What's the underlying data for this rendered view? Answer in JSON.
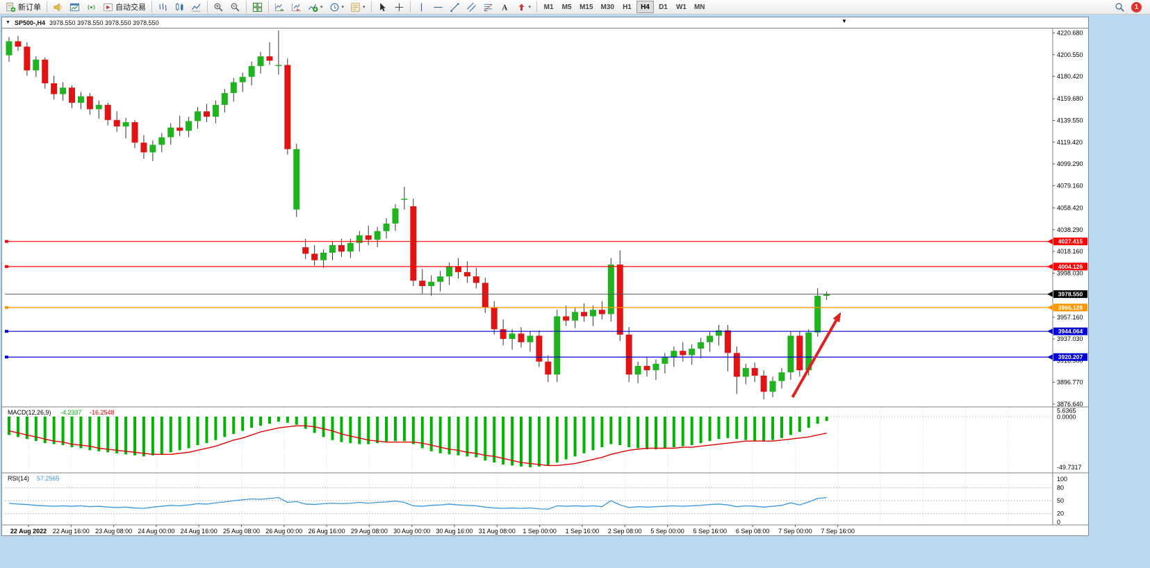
{
  "toolbar": {
    "items": [
      {
        "type": "button",
        "name": "new-order-button",
        "icon": "new-order-icon",
        "label": "新订单"
      },
      {
        "type": "sep"
      },
      {
        "type": "icon",
        "name": "announcement-button",
        "icon": "announcement-icon"
      },
      {
        "type": "icon",
        "name": "chart-window-button",
        "icon": "chart-window-icon"
      },
      {
        "type": "icon",
        "name": "signals-button",
        "icon": "signals-icon"
      },
      {
        "type": "button",
        "name": "autotrading-button",
        "icon": "autotrading-icon",
        "label": "自动交易"
      },
      {
        "type": "sep"
      },
      {
        "type": "icon",
        "name": "bar-chart-button",
        "icon": "bar-chart-icon"
      },
      {
        "type": "icon",
        "name": "candlestick-button",
        "icon": "candles-icon"
      },
      {
        "type": "icon",
        "name": "line-chart-button",
        "icon": "line-chart-icon"
      },
      {
        "type": "sep"
      },
      {
        "type": "icon",
        "name": "zoom-in-button",
        "icon": "zoom-in-icon"
      },
      {
        "type": "icon",
        "name": "zoom-out-button",
        "icon": "zoom-out-icon"
      },
      {
        "type": "sep"
      },
      {
        "type": "icon",
        "name": "tile-windows-button",
        "icon": "tile-windows-icon"
      },
      {
        "type": "sep"
      },
      {
        "type": "icon",
        "name": "auto-scroll-button",
        "icon": "autoscroll-icon"
      },
      {
        "type": "icon",
        "name": "chart-shift-button",
        "icon": "shift-chart-icon"
      },
      {
        "type": "icon",
        "name": "indicators-button",
        "icon": "indicators-icon",
        "dropdown": true
      },
      {
        "type": "icon",
        "name": "periods-button",
        "icon": "periods-icon",
        "dropdown": true
      },
      {
        "type": "icon",
        "name": "templates-button",
        "icon": "templates-icon",
        "dropdown": true
      },
      {
        "type": "sep"
      },
      {
        "type": "icon",
        "name": "cursor-button",
        "icon": "cursor-icon"
      },
      {
        "type": "icon",
        "name": "crosshair-button",
        "icon": "crosshair-icon"
      },
      {
        "type": "sep"
      },
      {
        "type": "icon",
        "name": "vline-button",
        "icon": "vline-icon"
      },
      {
        "type": "icon",
        "name": "hline-button",
        "icon": "hline-icon"
      },
      {
        "type": "icon",
        "name": "trendline-button",
        "icon": "trendline-icon"
      },
      {
        "type": "icon",
        "name": "channel-button",
        "icon": "channel-icon"
      },
      {
        "type": "icon",
        "name": "fibonacci-button",
        "icon": "fibo-icon"
      },
      {
        "type": "icon",
        "name": "text-button",
        "icon": "text-icon"
      },
      {
        "type": "icon",
        "name": "arrows-button",
        "icon": "arrows-icon",
        "dropdown": true
      },
      {
        "type": "sep"
      },
      {
        "type": "tf",
        "label": "M1"
      },
      {
        "type": "tf",
        "label": "M5"
      },
      {
        "type": "tf",
        "label": "M15"
      },
      {
        "type": "tf",
        "label": "M30"
      },
      {
        "type": "tf",
        "label": "H1"
      },
      {
        "type": "tf",
        "label": "H4",
        "active": true
      },
      {
        "type": "tf",
        "label": "D1"
      },
      {
        "type": "tf",
        "label": "W1"
      },
      {
        "type": "tf",
        "label": "MN"
      },
      {
        "type": "spacer"
      },
      {
        "type": "icon",
        "name": "search-button",
        "icon": "search-icon"
      },
      {
        "type": "badge",
        "name": "notification-badge",
        "label": "1"
      }
    ]
  },
  "chart_window": {
    "expand_icon": "▼",
    "menu_icon": "▼",
    "title": "SP500-,H4",
    "quotes": "3978.550 3978.550 3978.550 3978.550"
  },
  "chart_data": {
    "type": "candlestick",
    "symbol": "SP500-",
    "timeframe": "H4",
    "colors": {
      "up": "#1fb41f",
      "down": "#e01414",
      "wick": "#333333"
    },
    "y_ticks": [
      "4220.680",
      "4200.550",
      "4180.420",
      "4159.680",
      "4139.550",
      "4119.420",
      "4099.290",
      "4079.160",
      "4058.420",
      "4038.290",
      "4018.160",
      "3998.030",
      "3957.160",
      "3937.030",
      "3916.900",
      "3896.770",
      "3876.640"
    ],
    "hlines": [
      {
        "price": 4027.415,
        "label": "4027.415",
        "color": "#ff0000"
      },
      {
        "price": 4004.126,
        "label": "4004.126",
        "color": "#ff0000"
      },
      {
        "price": 3966.128,
        "label": "3966.128",
        "color": "#ff9800"
      },
      {
        "price": 3944.064,
        "label": "3944.064",
        "color": "#0000d8"
      },
      {
        "price": 3920.207,
        "label": "3920.207",
        "color": "#0000d8"
      }
    ],
    "current_price": {
      "price": 3978.55,
      "label": "3978.550",
      "line_color": "#555555",
      "label_bg": "#000000"
    },
    "candles": [
      [
        4200,
        4217,
        4194,
        4213
      ],
      [
        4213,
        4218,
        4204,
        4208
      ],
      [
        4208,
        4212,
        4181,
        4186
      ],
      [
        4186,
        4199,
        4180,
        4196
      ],
      [
        4196,
        4198,
        4169,
        4174
      ],
      [
        4174,
        4181,
        4159,
        4164
      ],
      [
        4164,
        4175,
        4158,
        4170
      ],
      [
        4170,
        4172,
        4151,
        4156
      ],
      [
        4156,
        4166,
        4150,
        4162
      ],
      [
        4162,
        4165,
        4145,
        4150
      ],
      [
        4150,
        4158,
        4141,
        4154
      ],
      [
        4154,
        4156,
        4135,
        4140
      ],
      [
        4140,
        4148,
        4129,
        4134
      ],
      [
        4134,
        4142,
        4123,
        4138
      ],
      [
        4138,
        4140,
        4114,
        4119
      ],
      [
        4119,
        4126,
        4104,
        4110
      ],
      [
        4110,
        4121,
        4102,
        4117
      ],
      [
        4117,
        4128,
        4110,
        4124
      ],
      [
        4124,
        4137,
        4117,
        4133
      ],
      [
        4133,
        4144,
        4125,
        4130
      ],
      [
        4130,
        4143,
        4124,
        4139
      ],
      [
        4139,
        4152,
        4132,
        4148
      ],
      [
        4148,
        4155,
        4138,
        4143
      ],
      [
        4143,
        4158,
        4137,
        4154
      ],
      [
        4154,
        4169,
        4147,
        4165
      ],
      [
        4165,
        4179,
        4157,
        4175
      ],
      [
        4175,
        4184,
        4166,
        4180
      ],
      [
        4180,
        4194,
        4172,
        4190
      ],
      [
        4190,
        4203,
        4183,
        4199
      ],
      [
        4199,
        4212,
        4191,
        4195
      ],
      [
        4190,
        4223,
        4182,
        4191
      ],
      [
        4191,
        4197,
        4108,
        4113
      ],
      [
        4057,
        4118,
        4050,
        4113
      ],
      [
        4022,
        4030,
        4011,
        4016
      ],
      [
        4016,
        4024,
        4005,
        4010
      ],
      [
        4010,
        4020,
        4003,
        4017
      ],
      [
        4017,
        4028,
        4010,
        4024
      ],
      [
        4024,
        4030,
        4013,
        4018
      ],
      [
        4018,
        4030,
        4012,
        4026
      ],
      [
        4026,
        4037,
        4018,
        4033
      ],
      [
        4033,
        4042,
        4024,
        4029
      ],
      [
        4029,
        4041,
        4022,
        4037
      ],
      [
        4037,
        4049,
        4030,
        4044
      ],
      [
        4044,
        4062,
        4037,
        4058
      ],
      [
        4066,
        4078,
        4057,
        4067
      ],
      [
        4060,
        4067,
        3986,
        3991
      ],
      [
        3991,
        4002,
        3979,
        3986
      ],
      [
        3986,
        3996,
        3977,
        3990
      ],
      [
        3990,
        4000,
        3981,
        3995
      ],
      [
        3995,
        4008,
        3987,
        4004
      ],
      [
        4004,
        4012,
        3993,
        3999
      ],
      [
        3999,
        4009,
        3989,
        3995
      ],
      [
        3995,
        4003,
        3984,
        3989
      ],
      [
        3989,
        3994,
        3961,
        3966
      ],
      [
        3966,
        3972,
        3941,
        3946
      ],
      [
        3946,
        3955,
        3931,
        3937
      ],
      [
        3937,
        3946,
        3927,
        3942
      ],
      [
        3942,
        3948,
        3929,
        3934
      ],
      [
        3934,
        3944,
        3925,
        3940
      ],
      [
        3940,
        3945,
        3911,
        3916
      ],
      [
        3916,
        3922,
        3897,
        3904
      ],
      [
        3904,
        3964,
        3897,
        3958
      ],
      [
        3958,
        3968,
        3949,
        3954
      ],
      [
        3954,
        3966,
        3947,
        3962
      ],
      [
        3962,
        3970,
        3953,
        3958
      ],
      [
        3958,
        3968,
        3949,
        3964
      ],
      [
        3964,
        3972,
        3955,
        3960
      ],
      [
        3960,
        4012,
        3953,
        4006
      ],
      [
        4006,
        4019,
        3935,
        3941
      ],
      [
        3941,
        3948,
        3897,
        3904
      ],
      [
        3904,
        3916,
        3896,
        3912
      ],
      [
        3912,
        3920,
        3902,
        3908
      ],
      [
        3908,
        3918,
        3899,
        3914
      ],
      [
        3914,
        3924,
        3905,
        3920
      ],
      [
        3920,
        3930,
        3911,
        3926
      ],
      [
        3926,
        3934,
        3916,
        3922
      ],
      [
        3922,
        3932,
        3913,
        3928
      ],
      [
        3928,
        3938,
        3919,
        3934
      ],
      [
        3934,
        3944,
        3925,
        3940
      ],
      [
        3940,
        3950,
        3931,
        3945
      ],
      [
        3945,
        3950,
        3907,
        3924
      ],
      [
        3924,
        3930,
        3886,
        3902
      ],
      [
        3902,
        3914,
        3895,
        3910
      ],
      [
        3910,
        3915,
        3897,
        3903
      ],
      [
        3903,
        3908,
        3881,
        3888
      ],
      [
        3888,
        3902,
        3883,
        3898
      ],
      [
        3898,
        3910,
        3891,
        3906
      ],
      [
        3906,
        3944,
        3899,
        3940
      ],
      [
        3940,
        3944,
        3902,
        3908
      ],
      [
        3908,
        3946,
        3903,
        3943
      ],
      [
        3943,
        3984,
        3939,
        3977
      ],
      [
        3977,
        3981,
        3973,
        3978.55
      ]
    ],
    "time_labels": [
      "22 Aug 2022",
      "22 Aug 16:00",
      "23 Aug 08:00",
      "24 Aug 00:00",
      "24 Aug 16:00",
      "25 Aug 08:00",
      "26 Aug 00:00",
      "26 Aug 16:00",
      "29 Aug 08:00",
      "30 Aug 00:00",
      "30 Aug 16:00",
      "31 Aug 08:00",
      "1 Sep 00:00",
      "1 Sep 16:00",
      "2 Sep 08:00",
      "5 Sep 00:00",
      "5 Sep 16:00",
      "6 Sep 08:00",
      "7 Sep 00:00",
      "7 Sep 16:00"
    ],
    "macd": {
      "name": "MACD(12,26,9)",
      "value1": "-4.2337",
      "value2": "-16.2548",
      "scale_max": "5.6365",
      "scale_zero": "0.0000",
      "scale_min": "-49.7317",
      "histogram_color": "#00b400",
      "signal_color": "#e00000",
      "histogram": [
        -18,
        -20,
        -22,
        -24,
        -26,
        -27,
        -28,
        -30,
        -31,
        -33,
        -34,
        -35,
        -36,
        -37,
        -38,
        -39,
        -38,
        -37,
        -35,
        -33,
        -31,
        -28,
        -26,
        -23,
        -20,
        -17,
        -14,
        -11,
        -9,
        -7,
        -5,
        -6,
        -8,
        -12,
        -16,
        -20,
        -23,
        -25,
        -26,
        -27,
        -27,
        -26,
        -25,
        -24,
        -24,
        -27,
        -31,
        -34,
        -36,
        -37,
        -38,
        -39,
        -40,
        -43,
        -45,
        -47,
        -48,
        -49,
        -49.7,
        -49,
        -48,
        -45,
        -42,
        -39,
        -36,
        -33,
        -30,
        -27,
        -28,
        -30,
        -31,
        -32,
        -32,
        -31,
        -30,
        -29,
        -28,
        -26,
        -24,
        -22,
        -21,
        -22,
        -23,
        -24,
        -24,
        -23,
        -21,
        -18,
        -15,
        -11,
        -7,
        -4.23
      ],
      "signal": [
        -14,
        -16,
        -18,
        -20,
        -22,
        -24,
        -25,
        -27,
        -28,
        -29,
        -31,
        -32,
        -33,
        -34,
        -35,
        -36,
        -37,
        -37,
        -37,
        -36,
        -35,
        -33,
        -31,
        -29,
        -26,
        -23,
        -21,
        -18,
        -15,
        -13,
        -11,
        -10,
        -9,
        -9,
        -10,
        -12,
        -14,
        -17,
        -19,
        -21,
        -23,
        -24,
        -25,
        -25,
        -25,
        -25,
        -26,
        -28,
        -30,
        -32,
        -33,
        -35,
        -36,
        -38,
        -39,
        -41,
        -43,
        -45,
        -46,
        -47,
        -48,
        -48,
        -47,
        -46,
        -44,
        -42,
        -40,
        -37,
        -35,
        -33,
        -32,
        -31,
        -31,
        -31,
        -31,
        -30,
        -30,
        -29,
        -28,
        -27,
        -26,
        -25,
        -24,
        -24,
        -24,
        -24,
        -23,
        -22,
        -21,
        -20,
        -18,
        -16.25
      ]
    },
    "rsi": {
      "name": "RSI(14)",
      "value": "57.2565",
      "line_color": "#3a96dd",
      "levels": [
        "100",
        "80",
        "50",
        "20",
        "0"
      ],
      "values": [
        44,
        42,
        41,
        39,
        38,
        37,
        38,
        37,
        38,
        36,
        37,
        35,
        34,
        35,
        33,
        32,
        35,
        37,
        39,
        38,
        40,
        43,
        42,
        45,
        47,
        50,
        52,
        54,
        53,
        55,
        57,
        46,
        48,
        42,
        41,
        43,
        44,
        43,
        44,
        46,
        44,
        46,
        47,
        49,
        46,
        38,
        37,
        39,
        40,
        42,
        40,
        39,
        38,
        35,
        33,
        32,
        33,
        32,
        33,
        31,
        30,
        38,
        37,
        38,
        37,
        38,
        36,
        50,
        40,
        34,
        36,
        35,
        36,
        37,
        38,
        37,
        38,
        39,
        41,
        42,
        40,
        36,
        38,
        37,
        35,
        37,
        39,
        45,
        40,
        47,
        55,
        57.26
      ]
    },
    "arrow": {
      "color": "#e02020",
      "from": {
        "index": 87.2,
        "price": 3883
      },
      "to": {
        "index": 92.6,
        "price": 3962
      }
    }
  }
}
